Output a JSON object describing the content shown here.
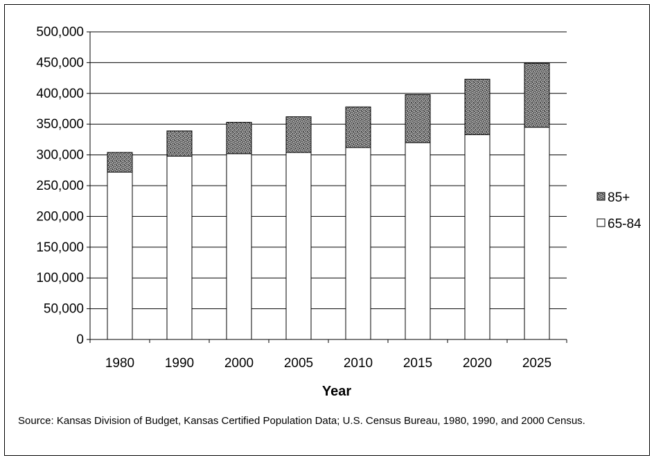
{
  "chart_data": {
    "type": "bar",
    "stacked": true,
    "categories": [
      "1980",
      "1990",
      "2000",
      "2005",
      "2010",
      "2015",
      "2020",
      "2025"
    ],
    "series": [
      {
        "name": "65-84",
        "values": [
          272000,
          298000,
          302000,
          304000,
          312000,
          320000,
          333000,
          345000
        ],
        "fill": "#ffffff"
      },
      {
        "name": "85+",
        "values": [
          32000,
          41000,
          51000,
          58000,
          66000,
          78000,
          90000,
          104000
        ],
        "fill": "#707070"
      }
    ],
    "xlabel": "Year",
    "ylabel": "",
    "ylim": [
      0,
      500000
    ],
    "yticks": [
      0,
      50000,
      100000,
      150000,
      200000,
      250000,
      300000,
      350000,
      400000,
      450000,
      500000
    ],
    "ytick_labels": [
      "0",
      "50,000",
      "100,000",
      "150,000",
      "200,000",
      "250,000",
      "300,000",
      "350,000",
      "400,000",
      "450,000",
      "500,000"
    ],
    "grid": true,
    "legend_position": "right",
    "legend_order": [
      "85+",
      "65-84"
    ]
  },
  "source_note": "Source: Kansas Division of Budget, Kansas Certified Population Data; U.S. Census Bureau, 1980, 1990, and 2000 Census."
}
